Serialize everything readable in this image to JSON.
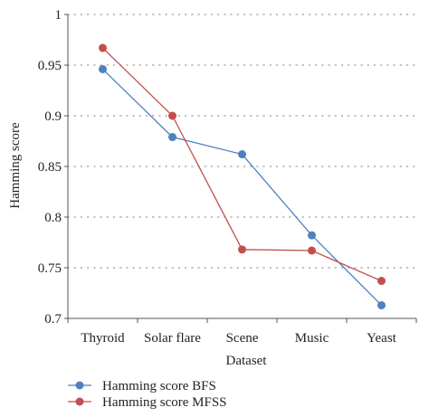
{
  "chart_data": {
    "type": "line",
    "categories": [
      "Thyroid",
      "Solar flare",
      "Scene",
      "Music",
      "Yeast"
    ],
    "series": [
      {
        "name": "Hamming score BFS",
        "values": [
          0.946,
          0.879,
          0.862,
          0.782,
          0.713
        ],
        "color": "#4f81bd"
      },
      {
        "name": "Hamming score MFSS",
        "values": [
          0.967,
          0.9,
          0.768,
          0.767,
          0.737
        ],
        "color": "#c0504d"
      }
    ],
    "title": "",
    "xlabel": "Dataset",
    "ylabel": "Hamming score",
    "ylim": [
      0.7,
      1.0
    ],
    "yticks": [
      0.7,
      0.75,
      0.8,
      0.85,
      0.9,
      0.95,
      1.0
    ],
    "ytick_labels": [
      "0.7",
      "0.75",
      "0.8",
      "0.85",
      "0.9",
      "0.95",
      "1"
    ],
    "grid": "horizontal dotted",
    "legend_position": "bottom-left"
  }
}
